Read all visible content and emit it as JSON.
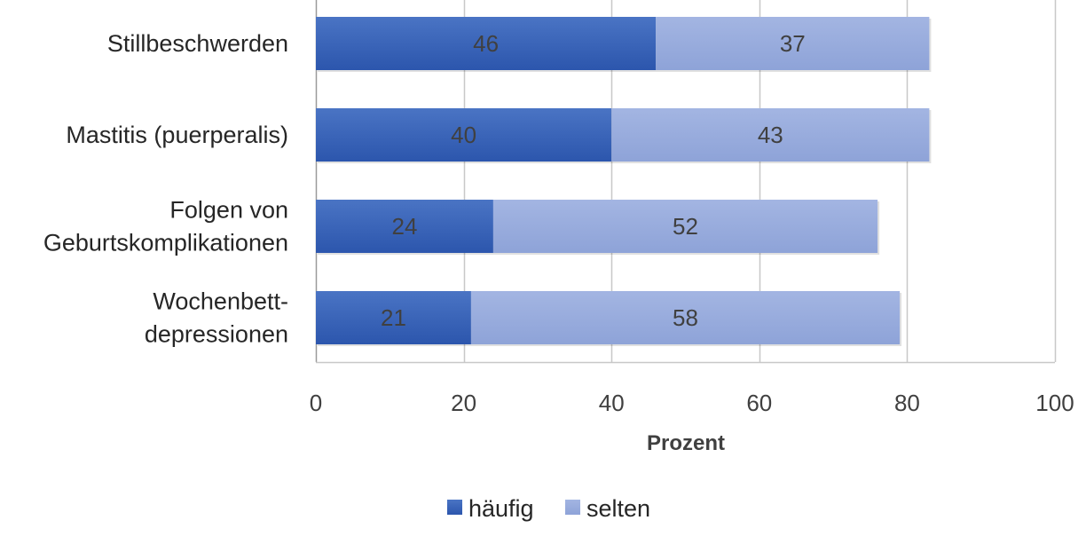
{
  "chart_data": {
    "type": "bar",
    "orientation": "horizontal",
    "stacked": true,
    "categories": [
      [
        "Stillbeschwerden"
      ],
      [
        "Mastitis (puerperalis)"
      ],
      [
        "Folgen von",
        "Geburtskomplikationen"
      ],
      [
        "Wochenbett-",
        "depressionen"
      ]
    ],
    "series": [
      {
        "name": "häufig",
        "color": "#3a63b5",
        "values": [
          46,
          40,
          24,
          21
        ]
      },
      {
        "name": "selten",
        "color": "#95a9dc",
        "values": [
          37,
          43,
          52,
          58
        ]
      }
    ],
    "xlabel": "Prozent",
    "xlim": [
      0,
      100
    ],
    "xticks": [
      0,
      20,
      40,
      60,
      80,
      100
    ],
    "grid": true,
    "legend": "bottom",
    "data_labels": true
  }
}
